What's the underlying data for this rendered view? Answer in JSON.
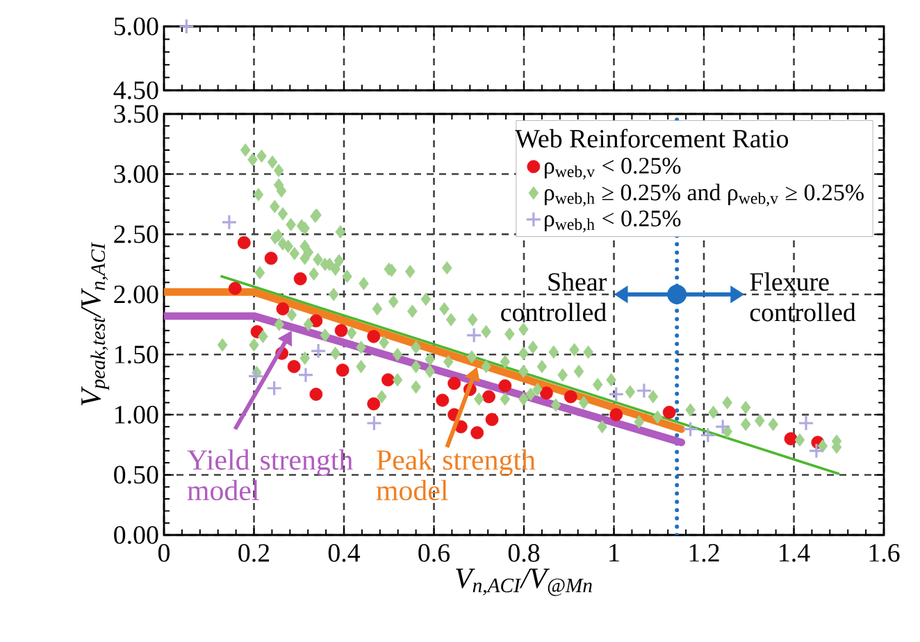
{
  "chart_data": [
    {
      "type": "scatter",
      "xlim": [
        0,
        1.6
      ],
      "xticks": [
        0,
        0.2,
        0.4,
        0.6,
        0.8,
        1,
        1.2,
        1.4,
        1.6
      ],
      "ylim": [
        4.5,
        5.0
      ],
      "yticks": [
        {
          "value": 4.5,
          "label": "4.50"
        },
        {
          "value": 5.0,
          "label": "5.00"
        }
      ],
      "grid": true,
      "tick_labels": "y",
      "series": [
        {
          "color": "#aeaadf",
          "marker": "cross",
          "x": [
            0.05
          ],
          "values": [
            5.0
          ]
        }
      ]
    },
    {
      "type": "scatter",
      "xlim": [
        0,
        1.6
      ],
      "xticks": [
        0,
        0.2,
        0.4,
        0.6,
        0.8,
        1,
        1.2,
        1.4,
        1.6
      ],
      "ylim": [
        0,
        3.5
      ],
      "yticks": [
        {
          "value": 0,
          "label": "0.00"
        },
        {
          "value": 0.5,
          "label": "0.50"
        },
        {
          "value": 1,
          "label": "1.00"
        },
        {
          "value": 1.5,
          "label": "1.50"
        },
        {
          "value": 2,
          "label": "2.00"
        },
        {
          "value": 2.5,
          "label": "2.50"
        },
        {
          "value": 3,
          "label": "3.00"
        },
        {
          "value": 3.5,
          "label": "3.50"
        }
      ],
      "xlabel": "V$_{n,ACI}$/V$_{@Mn}$",
      "ylabel": "V$_{peak,test}$/V$_{n,ACI}$",
      "legend_title": "Web Reinforcement Ratio",
      "legend": "top right",
      "grid": true,
      "annotations": [
        "Shear controlled",
        "Flexure controlled"
      ],
      "ref_lines": [
        {
          "axis": "x",
          "value": 1.14,
          "color": "#1f6fc0",
          "line_style": "dotted"
        }
      ],
      "series": [
        {
          "name": "ρ$_{web,v}$ < 0.25%",
          "color": "#e8141a",
          "marker": "circle",
          "x": [
            0.178,
            0.238,
            0.303,
            0.158,
            0.264,
            0.338,
            0.394,
            0.466,
            0.207,
            0.262,
            0.289,
            0.338,
            0.397,
            0.466,
            0.498,
            0.619,
            0.645,
            0.68,
            0.645,
            0.66,
            0.696,
            0.729,
            0.722,
            0.758,
            0.85,
            0.904,
            1.005,
            1.123,
            1.393,
            1.453
          ],
          "values": [
            2.43,
            2.3,
            2.13,
            2.05,
            1.88,
            1.78,
            1.7,
            1.65,
            1.69,
            1.51,
            1.4,
            1.17,
            1.37,
            1.09,
            1.29,
            1.12,
            1.26,
            1.21,
            1.0,
            0.9,
            0.85,
            0.96,
            1.15,
            1.24,
            1.18,
            1.15,
            1.0,
            1.02,
            0.8,
            0.77
          ]
        },
        {
          "name": "ρ$_{web,h}$ ≥ 0.25% and ρ$_{web,v}$ ≥ 0.25%",
          "color": "#9fd18a",
          "marker": "diamond",
          "x": [
            0.181,
            0.217,
            0.197,
            0.241,
            0.255,
            0.255,
            0.261,
            0.21,
            0.246,
            0.264,
            0.336,
            0.282,
            0.306,
            0.254,
            0.264,
            0.29,
            0.321,
            0.342,
            0.368,
            0.389,
            0.506,
            0.547,
            0.629,
            0.213,
            0.339,
            0.313,
            0.392,
            0.247,
            0.276,
            0.313,
            0.313,
            0.358,
            0.333,
            0.381,
            0.407,
            0.444,
            0.5,
            0.51,
            0.474,
            0.552,
            0.582,
            0.623,
            0.638,
            0.686,
            0.716,
            0.768,
            0.799,
            0.377,
            0.284,
            0.321,
            0.358,
            0.417,
            0.438,
            0.489,
            0.519,
            0.56,
            0.591,
            0.56,
            0.519,
            0.591,
            0.632,
            0.684,
            0.716,
            0.758,
            0.799,
            0.799,
            0.83,
            0.13,
            0.206,
            0.22,
            0.256,
            0.438,
            0.381,
            0.313,
            0.2,
            0.484,
            0.56,
            0.7,
            0.758,
            0.799,
            0.82,
            0.866,
            0.912,
            0.943,
            0.84,
            0.886,
            0.922,
            0.964,
            0.994,
            1.036,
            1.087,
            0.933,
            0.871,
            0.974,
            1.056,
            1.097,
            1.17,
            1.221,
            1.252,
            1.293,
            1.324,
            1.354,
            1.293,
            1.413,
            1.464,
            1.495,
            1.495,
            1.252,
            0.815
          ],
          "values": [
            3.2,
            3.15,
            3.12,
            3.1,
            3.03,
            2.91,
            2.86,
            2.83,
            2.73,
            2.67,
            2.65,
            2.58,
            2.57,
            2.49,
            2.42,
            2.34,
            2.35,
            2.29,
            2.25,
            2.28,
            2.2,
            2.19,
            2.22,
            2.18,
            2.66,
            2.55,
            2.52,
            2.47,
            2.4,
            2.4,
            2.3,
            2.25,
            2.17,
            2.21,
            2.15,
            2.09,
            2.21,
            1.94,
            1.88,
            1.86,
            1.96,
            1.88,
            1.79,
            1.79,
            1.69,
            1.67,
            1.71,
            2.0,
            1.83,
            1.75,
            1.66,
            1.68,
            1.56,
            1.6,
            1.5,
            1.56,
            1.46,
            1.4,
            1.29,
            1.36,
            1.44,
            1.48,
            1.4,
            1.44,
            1.51,
            1.36,
            1.21,
            1.58,
            1.35,
            1.65,
            1.75,
            1.4,
            1.51,
            1.47,
            1.58,
            1.15,
            1.23,
            1.13,
            1.13,
            1.13,
            1.56,
            1.52,
            1.54,
            1.52,
            1.4,
            1.33,
            1.36,
            1.25,
            1.29,
            1.19,
            1.15,
            1.1,
            1.08,
            0.9,
            0.94,
            0.98,
            1.04,
            1.02,
            1.1,
            1.06,
            0.95,
            0.92,
            0.92,
            0.79,
            0.74,
            0.78,
            0.73,
            0.86,
            1.17
          ]
        },
        {
          "name": "ρ$_{web,h}$ < 0.25%",
          "color": "#aeaadf",
          "marker": "cross",
          "x": [
            0.145,
            0.204,
            0.245,
            0.343,
            0.315,
            0.467,
            0.689,
            1.005,
            1.067,
            1.17,
            1.209,
            1.242,
            1.427,
            1.45
          ],
          "values": [
            2.6,
            1.32,
            1.22,
            1.53,
            1.33,
            0.93,
            1.66,
            1.17,
            1.2,
            0.88,
            0.83,
            0.9,
            0.93,
            0.7
          ]
        },
        {
          "type": "line",
          "name": "Yield strength model",
          "color": "#b05cc0",
          "x": [
            0,
            0.2,
            1.15
          ],
          "values": [
            1.82,
            1.82,
            0.77
          ]
        },
        {
          "type": "line",
          "name": "Peak strength model",
          "color": "#f07f22",
          "x": [
            0,
            0.2,
            1.15
          ],
          "values": [
            2.02,
            2.02,
            0.88
          ]
        },
        {
          "type": "line",
          "color": "#4cb82e",
          "x": [
            0.128,
            1.499
          ],
          "values": [
            2.15,
            0.51
          ]
        }
      ]
    }
  ]
}
